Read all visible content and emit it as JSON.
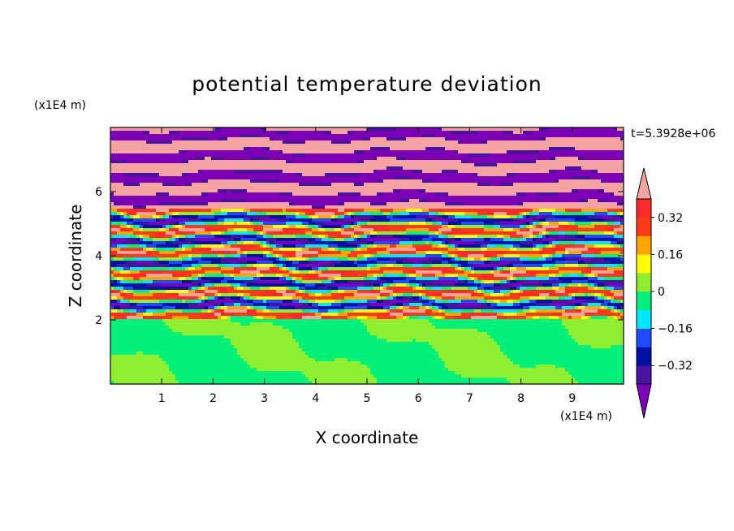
{
  "chart_data": {
    "type": "heatmap",
    "title": "potential temperature deviation",
    "xlabel": "X coordinate",
    "ylabel": "Z coordinate",
    "x_unit": "(x1E4 m)",
    "y_unit": "(x1E4 m)",
    "time_label": "t=5.3928e+06",
    "xlim": [
      0,
      10
    ],
    "ylim": [
      0,
      8
    ],
    "x_ticks": [
      1,
      2,
      3,
      4,
      5,
      6,
      7,
      8,
      9
    ],
    "y_ticks": [
      2,
      4,
      6
    ],
    "colorbar": {
      "levels": [
        -0.4,
        -0.32,
        -0.24,
        -0.16,
        -0.08,
        0,
        0.08,
        0.16,
        0.24,
        0.32,
        0.4
      ],
      "tick_labels": [
        "0.32",
        "0.16",
        "0",
        "−0.16",
        "−0.32"
      ],
      "tick_values": [
        0.32,
        0.16,
        0,
        -0.16,
        -0.32
      ],
      "colors": [
        "#7b00b8",
        "#4a139f",
        "#0010a8",
        "#1c4cff",
        "#00e8ff",
        "#00f07a",
        "#90ee30",
        "#ffff00",
        "#ffa500",
        "#ff3a1a",
        "#ff2a2a",
        "#f4a3a0"
      ],
      "extend": "both"
    }
  }
}
